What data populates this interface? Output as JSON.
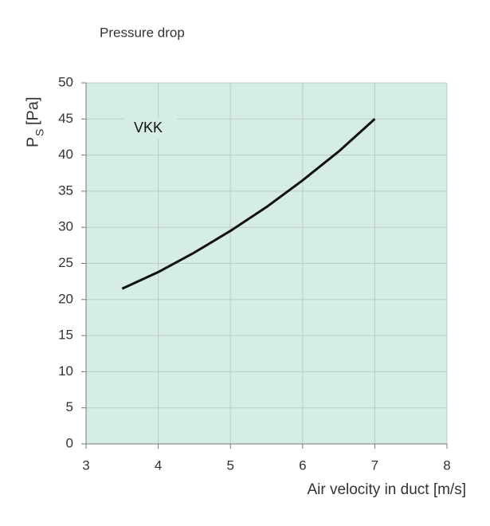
{
  "chart_data": {
    "type": "line",
    "title": "Pressure drop",
    "y_label": {
      "main": "P",
      "subscript": "S",
      "unit": "[Pa]"
    },
    "x_label": "Air velocity in duct [m/s]",
    "series": [
      {
        "name": "VKK",
        "color": "#111111",
        "x": [
          3.5,
          4,
          4.5,
          5,
          5.5,
          6,
          6.5,
          7
        ],
        "values": [
          21.5,
          23.8,
          26.5,
          29.5,
          32.8,
          36.5,
          40.5,
          45
        ]
      }
    ],
    "xlim": [
      3,
      8
    ],
    "xticks": [
      3,
      4,
      5,
      6,
      7,
      8
    ],
    "ylim": [
      0,
      50
    ],
    "yticks": [
      0,
      5,
      10,
      15,
      20,
      25,
      30,
      35,
      40,
      45,
      50
    ],
    "grid": true,
    "background": "#d6ece6"
  }
}
